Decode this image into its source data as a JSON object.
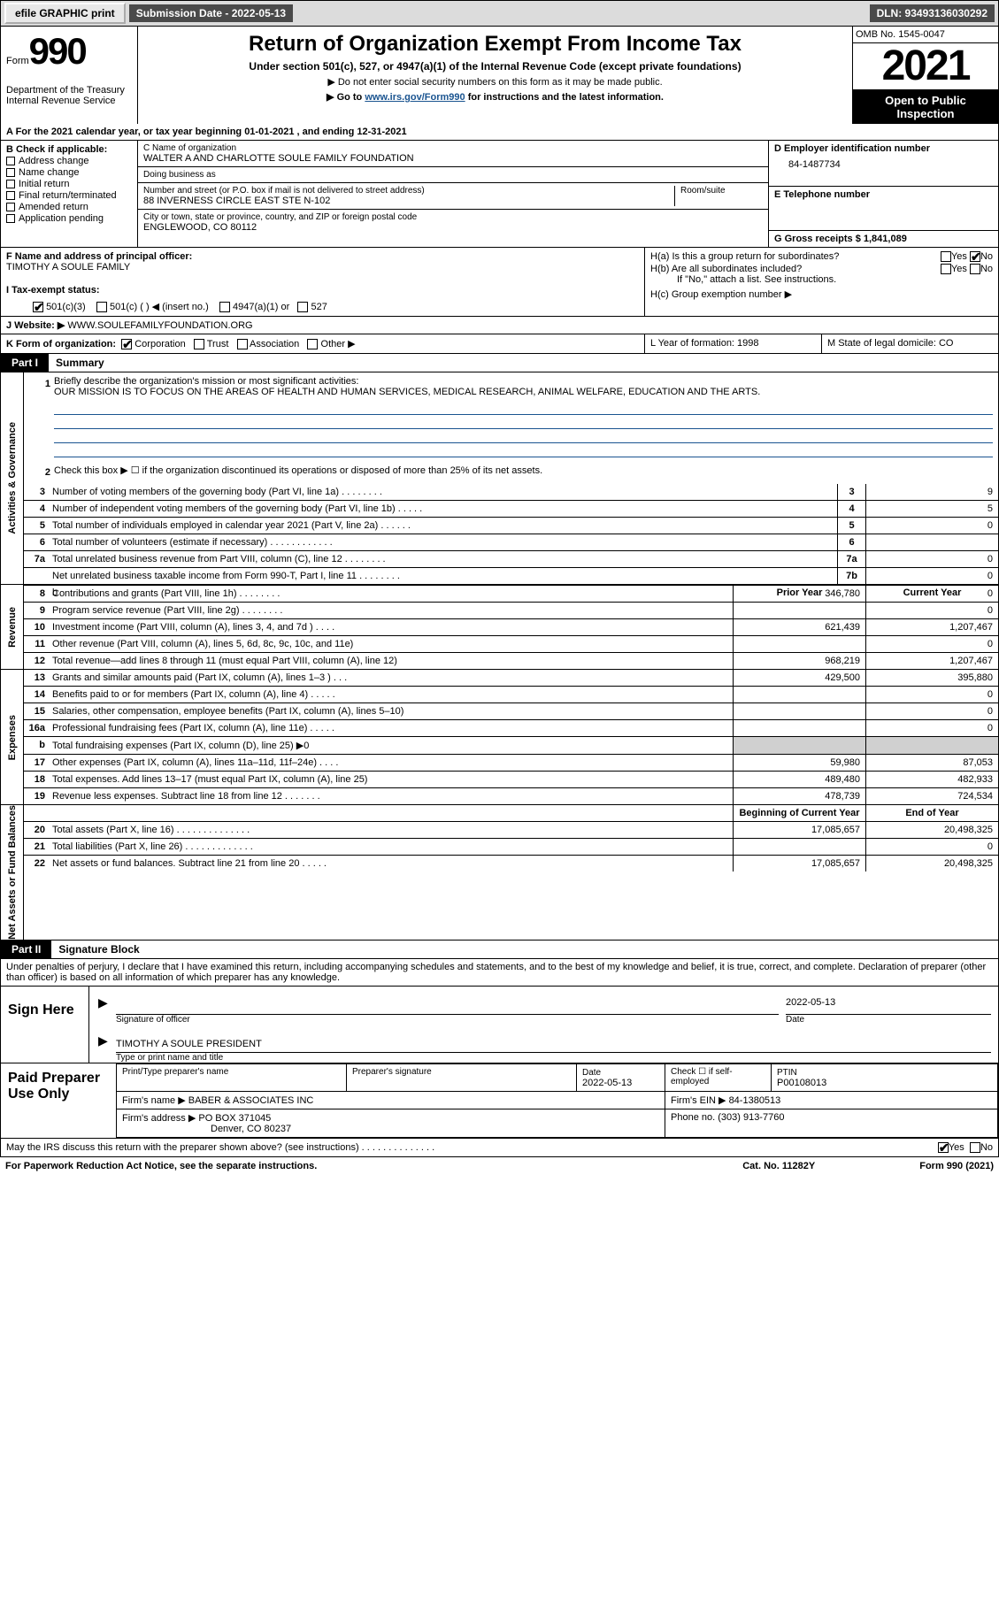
{
  "topbar": {
    "efile": "efile GRAPHIC print",
    "submission": "Submission Date - 2022-05-13",
    "dln": "DLN: 93493136030292"
  },
  "header": {
    "form_label": "Form",
    "form_number": "990",
    "title": "Return of Organization Exempt From Income Tax",
    "subtitle1": "Under section 501(c), 527, or 4947(a)(1) of the Internal Revenue Code (except private foundations)",
    "subtitle2": "▶ Do not enter social security numbers on this form as it may be made public.",
    "subtitle3": "▶ Go to www.irs.gov/Form990 for instructions and the latest information.",
    "link": "www.irs.gov/Form990",
    "dept": "Department of the Treasury\nInternal Revenue Service",
    "omb": "OMB No. 1545-0047",
    "year": "2021",
    "open": "Open to Public Inspection"
  },
  "row_a": "A For the 2021 calendar year, or tax year beginning 01-01-2021   , and ending 12-31-2021",
  "section_b": {
    "label": "B Check if applicable:",
    "items": [
      "Address change",
      "Name change",
      "Initial return",
      "Final return/terminated",
      "Amended return",
      "Application pending"
    ]
  },
  "section_c": {
    "name_label": "C Name of organization",
    "name": "WALTER A AND CHARLOTTE SOULE FAMILY FOUNDATION",
    "dba_label": "Doing business as",
    "addr_label": "Number and street (or P.O. box if mail is not delivered to street address)",
    "addr": "88 INVERNESS CIRCLE EAST STE N-102",
    "room_label": "Room/suite",
    "city_label": "City or town, state or province, country, and ZIP or foreign postal code",
    "city": "ENGLEWOOD, CO  80112"
  },
  "section_d": {
    "ein_label": "D Employer identification number",
    "ein": "84-1487734",
    "phone_label": "E Telephone number",
    "gross_label": "G Gross receipts $ 1,841,089"
  },
  "section_f": {
    "label": "F  Name and address of principal officer:",
    "name": "TIMOTHY A SOULE FAMILY"
  },
  "section_h": {
    "ha": "H(a)  Is this a group return for subordinates?",
    "hb": "H(b)  Are all subordinates included?",
    "hb_note": "If \"No,\" attach a list. See instructions.",
    "hc": "H(c)  Group exemption number ▶",
    "yes": "Yes",
    "no": "No"
  },
  "section_i": {
    "label": "I    Tax-exempt status:",
    "opts": [
      "501(c)(3)",
      "501(c) (  ) ◀ (insert no.)",
      "4947(a)(1) or",
      "527"
    ]
  },
  "section_j": {
    "label": "J   Website: ▶",
    "value": " WWW.SOULEFAMILYFOUNDATION.ORG"
  },
  "section_k": {
    "label": "K Form of organization:",
    "opts": [
      "Corporation",
      "Trust",
      "Association",
      "Other ▶"
    ]
  },
  "section_l": "L Year of formation: 1998",
  "section_m": "M State of legal domicile: CO",
  "parts": {
    "part1": "Part I",
    "part1_title": "Summary",
    "part2": "Part II",
    "part2_title": "Signature Block"
  },
  "vtabs": {
    "activities": "Activities & Governance",
    "revenue": "Revenue",
    "expenses": "Expenses",
    "netassets": "Net Assets or Fund Balances"
  },
  "summary": {
    "line1_label": "Briefly describe the organization's mission or most significant activities:",
    "line1_text": "OUR MISSION IS TO FOCUS ON THE AREAS OF HEALTH AND HUMAN SERVICES, MEDICAL RESEARCH, ANIMAL WELFARE, EDUCATION AND THE ARTS.",
    "line2": "Check this box ▶ ☐  if the organization discontinued its operations or disposed of more than 25% of its net assets.",
    "rows_top": [
      {
        "n": "3",
        "t": "Number of voting members of the governing body (Part VI, line 1a)  .   .   .   .   .   .   .   .",
        "box": "3",
        "v": "9"
      },
      {
        "n": "4",
        "t": "Number of independent voting members of the governing body (Part VI, line 1b)  .   .   .   .   .",
        "box": "4",
        "v": "5"
      },
      {
        "n": "5",
        "t": "Total number of individuals employed in calendar year 2021 (Part V, line 2a)  .   .   .   .   .   .",
        "box": "5",
        "v": "0"
      },
      {
        "n": "6",
        "t": "Total number of volunteers (estimate if necessary)   .   .   .   .   .   .   .   .   .   .   .   .",
        "box": "6",
        "v": ""
      },
      {
        "n": "7a",
        "t": "Total unrelated business revenue from Part VIII, column (C), line 12   .   .   .   .   .   .   .   .",
        "box": "7a",
        "v": "0"
      },
      {
        "n": "",
        "t": "Net unrelated business taxable income from Form 990-T, Part I, line 11  .   .   .   .   .   .   .   .",
        "box": "7b",
        "v": "0"
      }
    ],
    "prior_label": "Prior Year",
    "current_label": "Current Year",
    "boy_label": "Beginning of Current Year",
    "eoy_label": "End of Year",
    "revenue_rows": [
      {
        "n": "8",
        "t": "Contributions and grants (Part VIII, line 1h)   .   .   .   .   .   .   .   .",
        "p": "346,780",
        "c": "0"
      },
      {
        "n": "9",
        "t": "Program service revenue (Part VIII, line 2g)   .   .   .   .   .   .   .   .",
        "p": "",
        "c": "0"
      },
      {
        "n": "10",
        "t": "Investment income (Part VIII, column (A), lines 3, 4, and 7d )   .   .   .   .",
        "p": "621,439",
        "c": "1,207,467"
      },
      {
        "n": "11",
        "t": "Other revenue (Part VIII, column (A), lines 5, 6d, 8c, 9c, 10c, and 11e)",
        "p": "",
        "c": "0"
      },
      {
        "n": "12",
        "t": "Total revenue—add lines 8 through 11 (must equal Part VIII, column (A), line 12)",
        "p": "968,219",
        "c": "1,207,467"
      }
    ],
    "expense_rows": [
      {
        "n": "13",
        "t": "Grants and similar amounts paid (Part IX, column (A), lines 1–3 )   .   .   .",
        "p": "429,500",
        "c": "395,880"
      },
      {
        "n": "14",
        "t": "Benefits paid to or for members (Part IX, column (A), line 4)   .   .   .   .   .",
        "p": "",
        "c": "0"
      },
      {
        "n": "15",
        "t": "Salaries, other compensation, employee benefits (Part IX, column (A), lines 5–10)",
        "p": "",
        "c": "0"
      },
      {
        "n": "16a",
        "t": "Professional fundraising fees (Part IX, column (A), line 11e)   .   .   .   .   .",
        "p": "",
        "c": "0"
      },
      {
        "n": "b",
        "t": "Total fundraising expenses (Part IX, column (D), line 25) ▶0",
        "p": "blank",
        "c": "blank"
      },
      {
        "n": "17",
        "t": "Other expenses (Part IX, column (A), lines 11a–11d, 11f–24e)   .   .   .   .",
        "p": "59,980",
        "c": "87,053"
      },
      {
        "n": "18",
        "t": "Total expenses. Add lines 13–17 (must equal Part IX, column (A), line 25)",
        "p": "489,480",
        "c": "482,933"
      },
      {
        "n": "19",
        "t": "Revenue less expenses. Subtract line 18 from line 12  .   .   .   .   .   .   .",
        "p": "478,739",
        "c": "724,534"
      }
    ],
    "net_rows": [
      {
        "n": "20",
        "t": "Total assets (Part X, line 16)  .   .   .   .   .   .   .   .   .   .   .   .   .   .",
        "p": "17,085,657",
        "c": "20,498,325"
      },
      {
        "n": "21",
        "t": "Total liabilities (Part X, line 26)  .   .   .   .   .   .   .   .   .   .   .   .   .",
        "p": "",
        "c": "0"
      },
      {
        "n": "22",
        "t": "Net assets or fund balances. Subtract line 21 from line 20  .   .   .   .   .",
        "p": "17,085,657",
        "c": "20,498,325"
      }
    ]
  },
  "sig": {
    "declaration": "Under penalties of perjury, I declare that I have examined this return, including accompanying schedules and statements, and to the best of my knowledge and belief, it is true, correct, and complete. Declaration of preparer (other than officer) is based on all information of which preparer has any knowledge.",
    "sign_here": "Sign Here",
    "sig_officer": "Signature of officer",
    "date_label": "Date",
    "date": "2022-05-13",
    "name": "TIMOTHY A SOULE  PRESIDENT",
    "name_label": "Type or print name and title"
  },
  "paid": {
    "label": "Paid Preparer Use Only",
    "print_label": "Print/Type preparer's name",
    "sig_label": "Preparer's signature",
    "date_label": "Date",
    "date": "2022-05-13",
    "check_label": "Check ☐ if self-employed",
    "ptin_label": "PTIN",
    "ptin": "P00108013",
    "firm_name_label": "Firm's name     ▶",
    "firm_name": "BABER & ASSOCIATES INC",
    "firm_ein_label": "Firm's EIN ▶",
    "firm_ein": "84-1380513",
    "firm_addr_label": "Firm's address ▶",
    "firm_addr": "PO BOX 371045",
    "firm_city": "Denver, CO  80237",
    "phone_label": "Phone no.",
    "phone": "(303) 913-7760"
  },
  "discuss": "May the IRS discuss this return with the preparer shown above? (see instructions)   .   .   .   .   .   .   .   .   .   .   .   .   .   .",
  "footer": {
    "paperwork": "For Paperwork Reduction Act Notice, see the separate instructions.",
    "cat": "Cat. No. 11282Y",
    "form": "Form 990 (2021)"
  }
}
